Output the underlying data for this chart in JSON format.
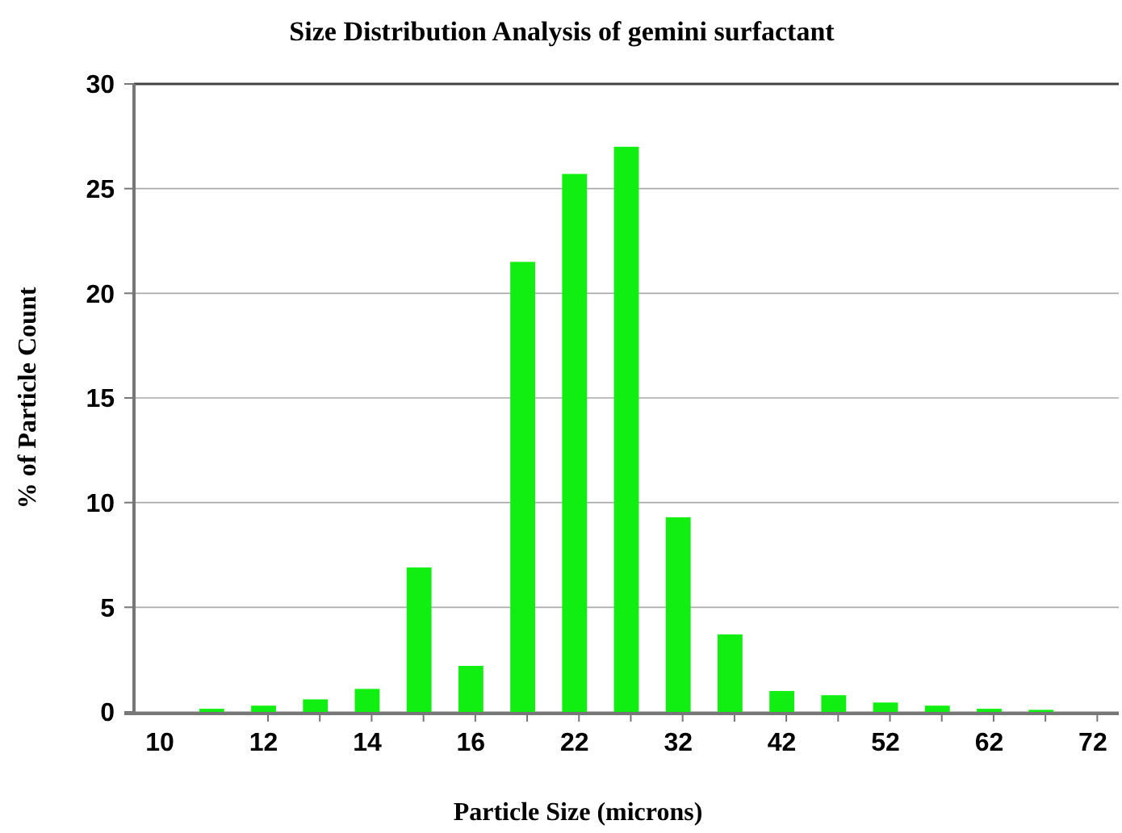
{
  "chart_data": {
    "type": "bar",
    "title": "Size Distribution Analysis of gemini surfactant",
    "xlabel": "Particle Size (microns)",
    "ylabel": "% of Particle Count",
    "categories": [
      "10",
      null,
      "12",
      null,
      "14",
      null,
      "16",
      null,
      "22",
      null,
      "32",
      null,
      "42",
      null,
      "52",
      null,
      "62",
      null,
      "72"
    ],
    "values": [
      0,
      0.15,
      0.3,
      0.6,
      1.1,
      6.9,
      2.2,
      21.5,
      25.7,
      27.0,
      9.3,
      3.7,
      1.0,
      0.8,
      0.45,
      0.3,
      0.15,
      0.1,
      0
    ],
    "color": "#11ee11",
    "ylim": [
      0,
      30
    ],
    "yticks": [
      0,
      5,
      10,
      15,
      20,
      25,
      30
    ],
    "grid": "y"
  }
}
